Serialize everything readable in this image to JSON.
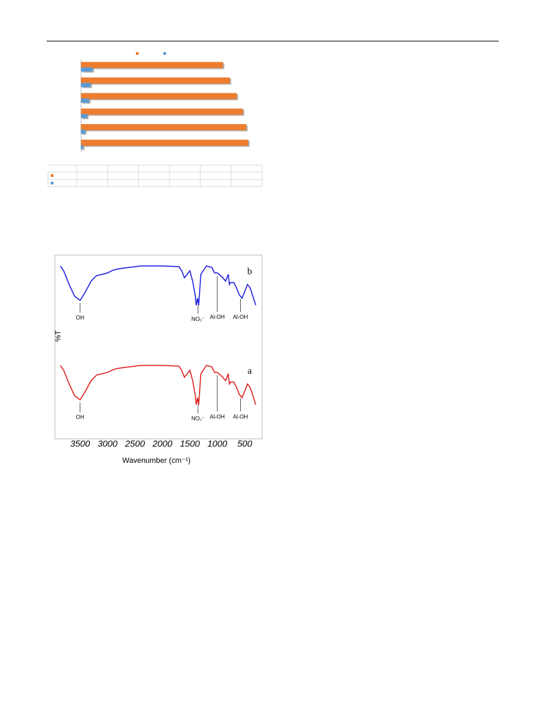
{
  "chart_data": [
    {
      "type": "bar",
      "horizontal": true,
      "categories": [
        null,
        null,
        null,
        null,
        null,
        null
      ],
      "xlim": [
        0,
        100
      ],
      "series": [
        {
          "color": "#ed7d31",
          "values": [
            79.6,
            83.5,
            87.3,
            90.8,
            92.7,
            93.8
          ]
        },
        {
          "color": "#5b9bd5",
          "values": [
            6.5,
            5.4,
            4.6,
            3.5,
            2.3,
            1.2
          ]
        }
      ]
    },
    {
      "type": "line",
      "xlabel": "Wavenumber (cm⁻¹)",
      "ylabel": "%T",
      "xlim": [
        3860,
        260
      ],
      "ylim": [
        0,
        100
      ],
      "xticks": [
        3500,
        3000,
        2500,
        2000,
        1500,
        1000,
        500
      ],
      "x": [
        3860,
        3800,
        3700,
        3600,
        3500,
        3400,
        3300,
        3200,
        3100,
        3000,
        2900,
        2800,
        2600,
        2400,
        2000,
        1700,
        1650,
        1600,
        1550,
        1500,
        1450,
        1400,
        1385,
        1360,
        1340,
        1300,
        1200,
        1100,
        1050,
        1000,
        900,
        850,
        800,
        780,
        760,
        700,
        650,
        600,
        550,
        500,
        450,
        400,
        300
      ],
      "series": [
        {
          "name": "b",
          "color": "#2020e0",
          "values": [
            96.2,
            93.5,
            85.8,
            79.2,
            76.9,
            81.9,
            87.7,
            90.8,
            91.5,
            92.3,
            93.8,
            94.6,
            95.4,
            96.2,
            96.2,
            95.8,
            93.5,
            89.6,
            91.5,
            93.5,
            87.7,
            79.2,
            74.2,
            78.1,
            74.2,
            91.5,
            96.2,
            95.4,
            92.3,
            92.3,
            89.6,
            87.7,
            91.5,
            85.8,
            86.9,
            86.9,
            83.8,
            80.0,
            78.1,
            81.9,
            85.8,
            83.8,
            74.2
          ],
          "annotations": [
            {
              "text": "OH",
              "x": 3500
            },
            {
              "text": "NO₃⁻",
              "x": 1350
            },
            {
              "text": "Al-OH",
              "x": 1000
            },
            {
              "text": "Al-OH",
              "x": 580
            }
          ]
        },
        {
          "name": "a",
          "color": "#e02020",
          "values": [
            40.4,
            37.7,
            30.0,
            23.4,
            21.1,
            26.1,
            31.9,
            35.0,
            35.7,
            36.5,
            38.0,
            38.8,
            39.6,
            40.4,
            40.4,
            40.0,
            37.7,
            33.8,
            35.7,
            37.7,
            31.9,
            23.4,
            18.4,
            22.3,
            18.4,
            35.7,
            40.4,
            39.6,
            36.5,
            36.5,
            33.8,
            31.9,
            35.7,
            30.0,
            31.1,
            31.1,
            28.0,
            24.2,
            22.3,
            26.1,
            30.0,
            28.0,
            18.4
          ],
          "annotations": [
            {
              "text": "OH",
              "x": 3500
            },
            {
              "text": "NO₃⁻",
              "x": 1350
            },
            {
              "text": "Al-OH",
              "x": 1000
            },
            {
              "text": "Al-OH",
              "x": 580
            }
          ]
        }
      ]
    }
  ]
}
